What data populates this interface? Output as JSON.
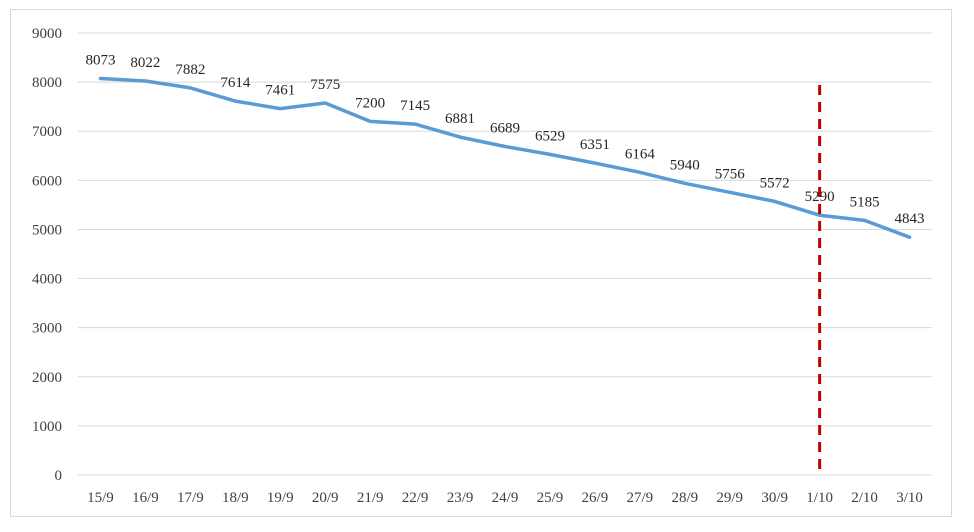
{
  "chart_data": {
    "type": "line",
    "title": "",
    "xlabel": "",
    "ylabel": "",
    "ylim": [
      0,
      9000
    ],
    "yticks": [
      0,
      1000,
      2000,
      3000,
      4000,
      5000,
      6000,
      7000,
      8000,
      9000
    ],
    "grid": "horizontal",
    "categories": [
      "15/9",
      "16/9",
      "17/9",
      "18/9",
      "19/9",
      "20/9",
      "21/9",
      "22/9",
      "23/9",
      "24/9",
      "25/9",
      "26/9",
      "27/9",
      "28/9",
      "29/9",
      "30/9",
      "1/10",
      "2/10",
      "3/10"
    ],
    "series": [
      {
        "values": [
          8073,
          8022,
          7882,
          7614,
          7461,
          7575,
          7200,
          7145,
          6881,
          6689,
          6529,
          6351,
          6164,
          5940,
          5756,
          5572,
          5290,
          5185,
          4843
        ],
        "color": "#5b9bd5",
        "data_labels": true
      }
    ],
    "annotations": [
      {
        "type": "vertical-dashed-line",
        "at_category": "1/10",
        "color": "#c00000"
      }
    ]
  }
}
